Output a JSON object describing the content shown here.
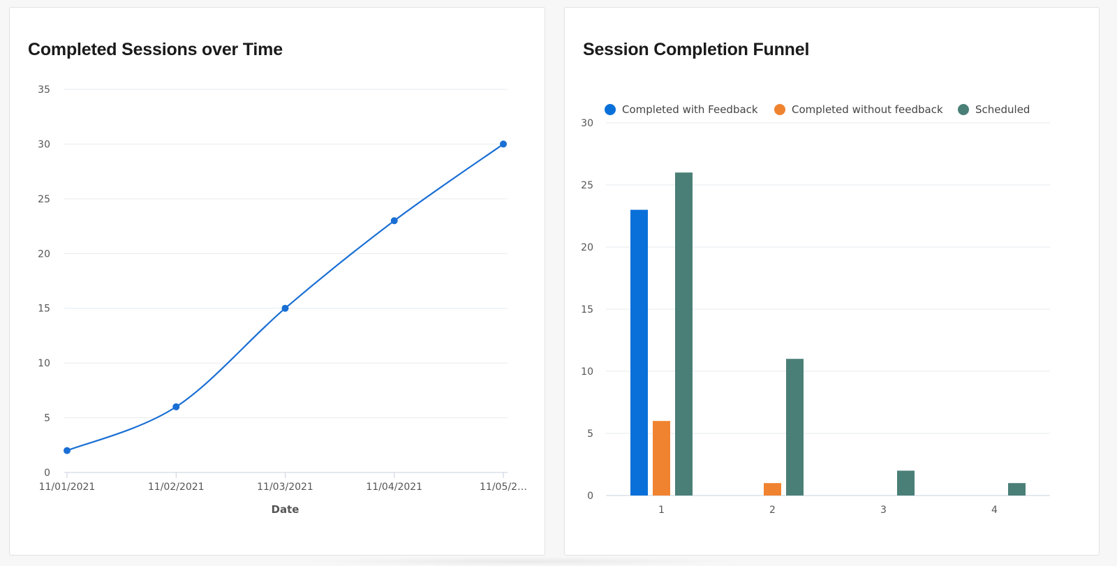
{
  "colors": {
    "line": "#1a6fd4",
    "grid": "#e6e9ee",
    "axis": "#c8d1de",
    "tick_text": "#555555",
    "completed_with_feedback": "#0a70d9",
    "completed_without_feedback": "#f08330",
    "scheduled": "#4a7f77"
  },
  "chart_data": [
    {
      "type": "line",
      "title": "Completed Sessions over Time",
      "xlabel": "Date",
      "ylabel": "",
      "x": [
        "11/01/2021",
        "11/02/2021",
        "11/03/2021",
        "11/04/2021",
        "11/05/2021"
      ],
      "x_tick_labels": [
        "11/01/2021",
        "11/02/2021",
        "11/03/2021",
        "11/04/2021",
        "11/05/2…"
      ],
      "y": [
        2,
        6,
        15,
        23,
        30
      ],
      "yticks": [
        0,
        5,
        10,
        15,
        20,
        25,
        30,
        35
      ],
      "ylim": [
        0,
        35
      ],
      "grid": true,
      "legend": "none"
    },
    {
      "type": "bar",
      "title": "Session Completion Funnel",
      "xlabel": "",
      "ylabel": "",
      "categories": [
        "1",
        "2",
        "3",
        "4"
      ],
      "series": [
        {
          "name": "Completed with Feedback",
          "color_key": "completed_with_feedback",
          "values": [
            23,
            0,
            0,
            0
          ]
        },
        {
          "name": "Completed without feedback",
          "color_key": "completed_without_feedback",
          "values": [
            6,
            1,
            0,
            0
          ]
        },
        {
          "name": "Scheduled",
          "color_key": "scheduled",
          "values": [
            26,
            11,
            2,
            1
          ]
        }
      ],
      "yticks": [
        0,
        5,
        10,
        15,
        20,
        25,
        30
      ],
      "ylim": [
        0,
        30
      ],
      "grid": true,
      "legend": "top"
    }
  ]
}
